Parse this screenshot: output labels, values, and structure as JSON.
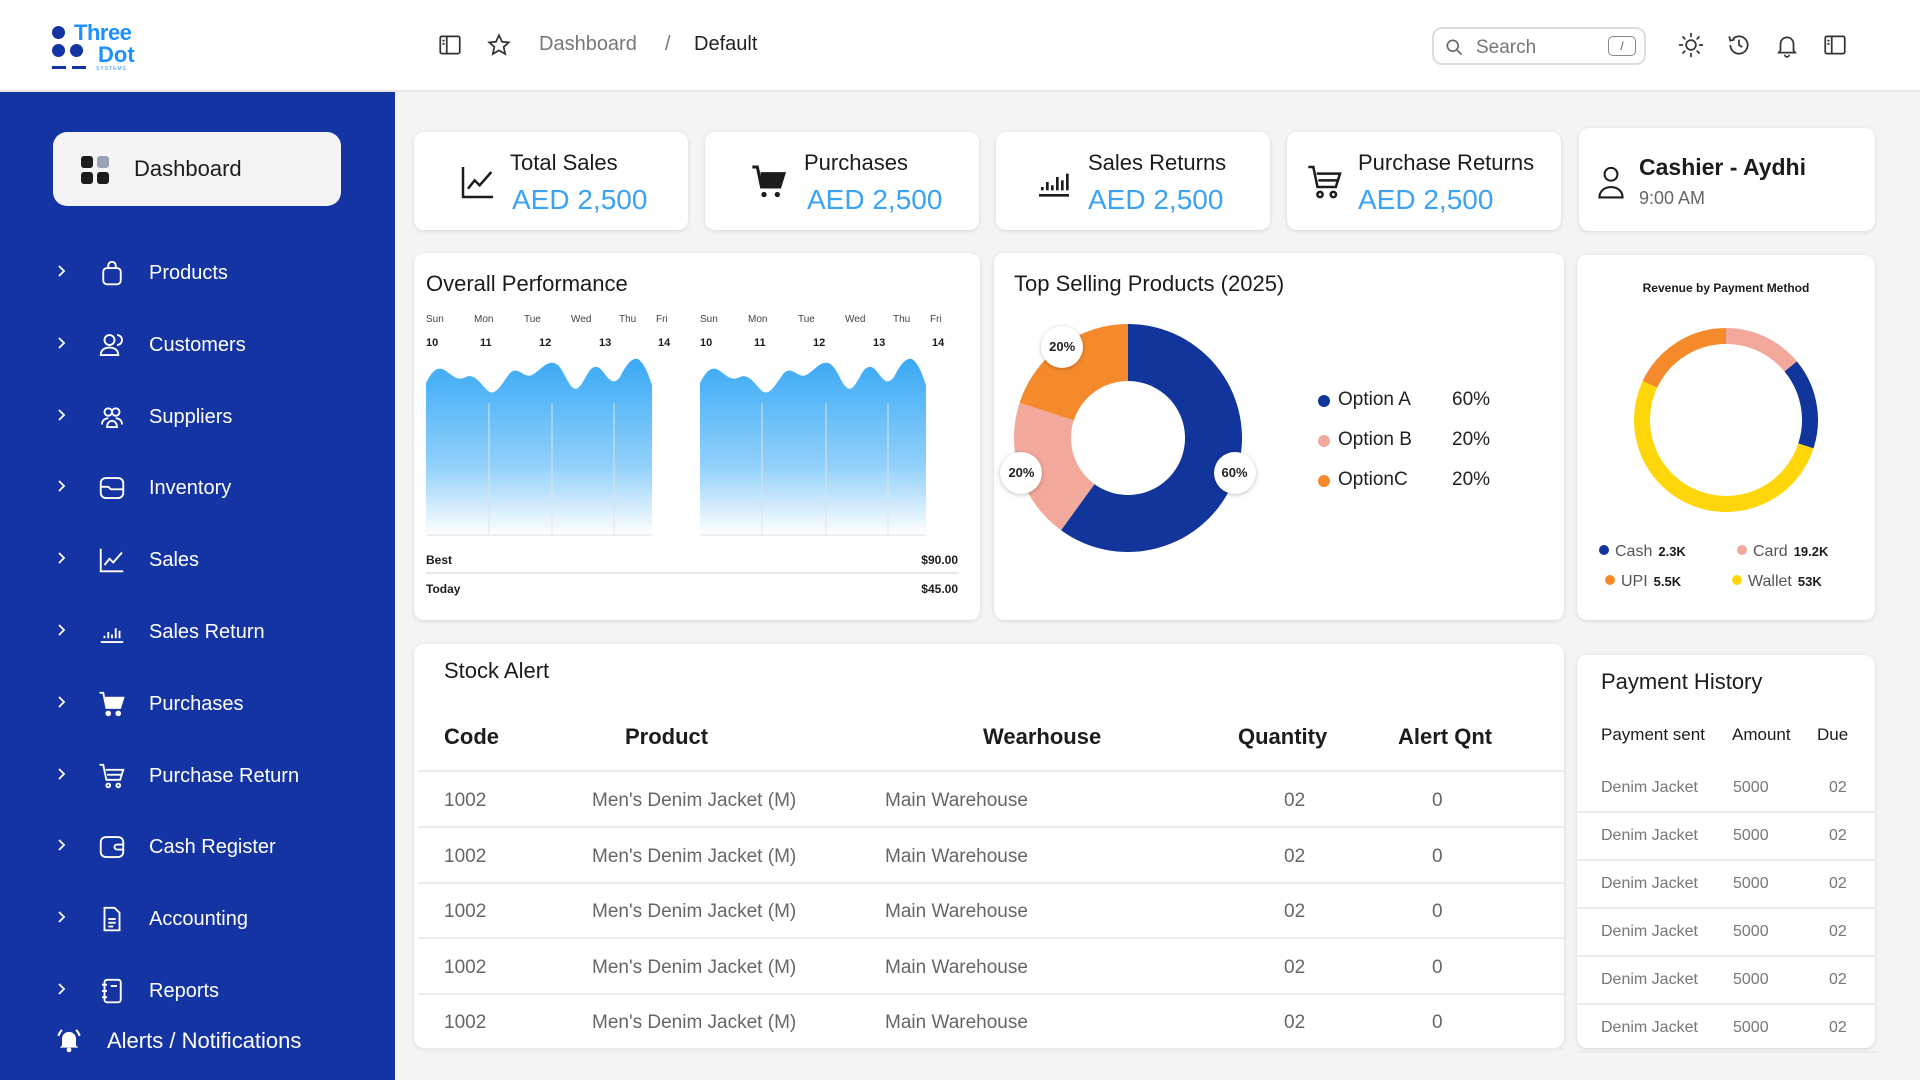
{
  "logo": {
    "line1": "Three",
    "line2": "Dot",
    "sub": "SYSTEMS"
  },
  "header": {
    "breadcrumb": [
      "Dashboard",
      "/",
      "Default"
    ],
    "search_placeholder": "Search",
    "search_shortcut": "/"
  },
  "sidebar": {
    "active": "Dashboard",
    "items": [
      {
        "label": "Products",
        "icon": "shopping-bag-icon"
      },
      {
        "label": "Customers",
        "icon": "users-icon"
      },
      {
        "label": "Suppliers",
        "icon": "user-group-icon"
      },
      {
        "label": "Inventory",
        "icon": "folder-icon"
      },
      {
        "label": "Sales",
        "icon": "line-chart-icon"
      },
      {
        "label": "Sales Return",
        "icon": "bar-chart-icon"
      },
      {
        "label": "Purchases",
        "icon": "cart-icon"
      },
      {
        "label": "Purchase Return",
        "icon": "cart-outline-icon"
      },
      {
        "label": "Cash Register",
        "icon": "wallet-icon"
      },
      {
        "label": "Accounting",
        "icon": "document-icon"
      },
      {
        "label": "Reports",
        "icon": "notebook-icon"
      }
    ],
    "alerts": "Alerts / Notifications"
  },
  "stats": [
    {
      "title": "Total Sales",
      "value": "AED 2,500"
    },
    {
      "title": "Purchases",
      "value": "AED 2,500"
    },
    {
      "title": "Sales Returns",
      "value": "AED 2,500"
    },
    {
      "title": "Purchase Returns",
      "value": "AED 2,500"
    }
  ],
  "cashier": {
    "name": "Cashier - Aydhi",
    "time": "9:00 AM"
  },
  "performance": {
    "title": "Overall Performance",
    "days": [
      "Sun",
      "Mon",
      "Tue",
      "Wed",
      "Thu",
      "Fri"
    ],
    "dates": [
      "10",
      "11",
      "12",
      "13",
      "14"
    ],
    "best_label": "Best",
    "best_value": "$90.00",
    "today_label": "Today",
    "today_value": "$45.00"
  },
  "chart_data": [
    {
      "type": "pie",
      "title": "Top Selling Products (2025)",
      "categories": [
        "Option A",
        "Option B",
        "OptionC"
      ],
      "values": [
        60,
        20,
        20
      ],
      "value_labels": [
        "60%",
        "20%",
        "20%"
      ],
      "colors": [
        "#12359c",
        "#f2a89a",
        "#f58a2c"
      ],
      "legend": "right"
    },
    {
      "type": "pie",
      "title": "Revenue by Payment Method",
      "categories": [
        "Cash",
        "Card",
        "UPI",
        "Wallet"
      ],
      "values": [
        2.3,
        19.2,
        5.5,
        53
      ],
      "value_labels": [
        "2.3K",
        "19.2K",
        "5.5K",
        "53K"
      ],
      "colors": [
        "#12359c",
        "#f2a89a",
        "#f58a2c",
        "#ffd60a"
      ],
      "legend": "bottom"
    }
  ],
  "stock_alert": {
    "title": "Stock Alert",
    "columns": [
      "Code",
      "Product",
      "Wearhouse",
      "Quantity",
      "Alert Qnt"
    ],
    "rows": [
      [
        "1002",
        "Men's Denim Jacket (M)",
        "Main Warehouse",
        "02",
        "0"
      ],
      [
        "1002",
        "Men's Denim Jacket (M)",
        "Main Warehouse",
        "02",
        "0"
      ],
      [
        "1002",
        "Men's Denim Jacket (M)",
        "Main Warehouse",
        "02",
        "0"
      ],
      [
        "1002",
        "Men's Denim Jacket (M)",
        "Main Warehouse",
        "02",
        "0"
      ],
      [
        "1002",
        "Men's Denim Jacket (M)",
        "Main Warehouse",
        "02",
        "0"
      ]
    ]
  },
  "payment_history": {
    "title": "Payment History",
    "columns": [
      "Payment sent",
      "Amount",
      "Due"
    ],
    "rows": [
      [
        "Denim Jacket",
        "5000",
        "02"
      ],
      [
        "Denim Jacket",
        "5000",
        "02"
      ],
      [
        "Denim Jacket",
        "5000",
        "02"
      ],
      [
        "Denim Jacket",
        "5000",
        "02"
      ],
      [
        "Denim Jacket",
        "5000",
        "02"
      ],
      [
        "Denim Jacket",
        "5000",
        "02"
      ]
    ]
  }
}
